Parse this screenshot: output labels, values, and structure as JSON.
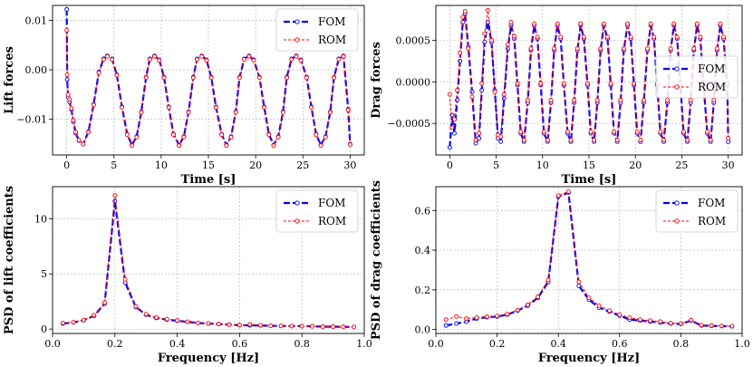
{
  "colors": {
    "fom": "#0000ff",
    "rom": "#ff0000"
  },
  "chart_data": [
    {
      "id": "lift-time",
      "type": "line",
      "xlabel": "Time [s]",
      "ylabel": "Lift forces",
      "xlim": [
        -1.5,
        31.5
      ],
      "ylim": [
        -0.0172,
        0.013
      ],
      "xticks": [
        0,
        5,
        10,
        15,
        20,
        25,
        30
      ],
      "xtick_labels": [
        "0",
        "5",
        "10",
        "15",
        "20",
        "25",
        "30"
      ],
      "yticks": [
        -0.01,
        0.0,
        0.01
      ],
      "ytick_labels": [
        "−0.01",
        "0.00",
        "0.01"
      ],
      "legend": [
        "FOM",
        "ROM"
      ],
      "grid": true,
      "series": [
        {
          "name": "FOM",
          "x": [
            0,
            0.05,
            0.15,
            0.3,
            0.5,
            0.7,
            0.95,
            1.3,
            1.75,
            2.3,
            2.85,
            3.4,
            3.9,
            4.3,
            4.8,
            5.3,
            5.85,
            6.4,
            6.9,
            7.4,
            7.9,
            8.4,
            8.8,
            9.3,
            9.8,
            10.3,
            10.8,
            11.3,
            11.9,
            12.4,
            12.9,
            13.4,
            13.8,
            14.3,
            14.8,
            15.3,
            15.8,
            16.4,
            16.9,
            17.4,
            17.9,
            18.3,
            18.8,
            19.3,
            19.8,
            20.4,
            20.9,
            21.4,
            21.9,
            22.4,
            22.9,
            23.3,
            23.8,
            24.3,
            24.8,
            25.4,
            25.9,
            26.4,
            26.9,
            27.4,
            27.9,
            28.3,
            28.8,
            29.3,
            29.8,
            30.0
          ],
          "y": [
            0.0122,
            -0.002,
            -0.0055,
            -0.0065,
            -0.008,
            -0.0105,
            -0.0128,
            -0.0143,
            -0.015,
            -0.0125,
            -0.007,
            -0.0005,
            0.0022,
            0.0028,
            0.0022,
            -0.001,
            -0.0075,
            -0.013,
            -0.0152,
            -0.0135,
            -0.0085,
            -0.0015,
            0.0022,
            0.0028,
            0.002,
            -0.0015,
            -0.0075,
            -0.013,
            -0.0152,
            -0.0135,
            -0.0085,
            -0.0015,
            0.0022,
            0.0028,
            0.002,
            -0.0015,
            -0.0075,
            -0.013,
            -0.0152,
            -0.0135,
            -0.0085,
            -0.0015,
            0.0022,
            0.0028,
            0.002,
            -0.0015,
            -0.0075,
            -0.013,
            -0.0152,
            -0.0135,
            -0.0085,
            -0.0015,
            0.0022,
            0.0028,
            0.002,
            -0.0015,
            -0.0075,
            -0.013,
            -0.0152,
            -0.0135,
            -0.0085,
            -0.0015,
            0.0022,
            0.0028,
            -0.008,
            -0.015
          ]
        },
        {
          "name": "ROM",
          "x": [
            0,
            0.05,
            0.15,
            0.3,
            0.5,
            0.7,
            0.95,
            1.3,
            1.75,
            2.3,
            2.85,
            3.4,
            3.9,
            4.3,
            4.8,
            5.3,
            5.85,
            6.4,
            6.9,
            7.4,
            7.9,
            8.4,
            8.8,
            9.3,
            9.8,
            10.3,
            10.8,
            11.3,
            11.9,
            12.4,
            12.9,
            13.4,
            13.8,
            14.3,
            14.8,
            15.3,
            15.8,
            16.4,
            16.9,
            17.4,
            17.9,
            18.3,
            18.8,
            19.3,
            19.8,
            20.4,
            20.9,
            21.4,
            21.9,
            22.4,
            22.9,
            23.3,
            23.8,
            24.3,
            24.8,
            25.4,
            25.9,
            26.4,
            26.9,
            27.4,
            27.9,
            28.3,
            28.8,
            29.3,
            29.8,
            30.0
          ],
          "y": [
            0.008,
            -0.001,
            -0.005,
            -0.006,
            -0.0078,
            -0.0102,
            -0.0126,
            -0.0142,
            -0.015,
            -0.0126,
            -0.0071,
            -0.0006,
            0.0021,
            0.0027,
            0.0021,
            -0.0011,
            -0.0076,
            -0.0131,
            -0.0153,
            -0.0136,
            -0.0086,
            -0.0016,
            0.0021,
            0.0027,
            0.0019,
            -0.0016,
            -0.0076,
            -0.0131,
            -0.0153,
            -0.0136,
            -0.0086,
            -0.0016,
            0.0021,
            0.0027,
            0.0019,
            -0.0016,
            -0.0076,
            -0.0131,
            -0.0153,
            -0.0136,
            -0.0086,
            -0.0016,
            0.0021,
            0.0027,
            0.0019,
            -0.0016,
            -0.0076,
            -0.0131,
            -0.0153,
            -0.0136,
            -0.0086,
            -0.0016,
            0.0021,
            0.0027,
            0.0019,
            -0.0016,
            -0.0076,
            -0.0131,
            -0.0153,
            -0.0136,
            -0.0086,
            -0.0016,
            0.0021,
            0.0027,
            -0.0081,
            -0.0151
          ]
        }
      ]
    },
    {
      "id": "drag-time",
      "type": "line",
      "xlabel": "Time [s]",
      "ylabel": "Drag forces",
      "xlim": [
        -1.5,
        31.5
      ],
      "ylim": [
        -0.00088,
        0.00092
      ],
      "xticks": [
        0,
        5,
        10,
        15,
        20,
        25,
        30
      ],
      "xtick_labels": [
        "0",
        "5",
        "10",
        "15",
        "20",
        "25",
        "30"
      ],
      "yticks": [
        -0.0005,
        0.0,
        0.0005
      ],
      "ytick_labels": [
        "−0.0005",
        "0.0000",
        "0.0005"
      ],
      "legend": [
        "FOM",
        "ROM"
      ],
      "grid": true,
      "series": [
        {
          "name": "FOM",
          "x": [
            0,
            0.25,
            0.5,
            0.8,
            1.1,
            1.4,
            1.65,
            2.0,
            2.4,
            2.8,
            3.15,
            3.45,
            3.75,
            4.1,
            4.5,
            4.85,
            5.2,
            5.5,
            5.85,
            6.25,
            6.6,
            6.95,
            7.3,
            7.65,
            8.0,
            8.4,
            8.75,
            9.1,
            9.45,
            9.8,
            10.15,
            10.55,
            10.9,
            11.25,
            11.6,
            11.95,
            12.3,
            12.7,
            13.05,
            13.4,
            13.75,
            14.1,
            14.45,
            14.85,
            15.2,
            15.55,
            15.9,
            16.25,
            16.6,
            17.0,
            17.35,
            17.7,
            18.05,
            18.4,
            18.75,
            19.15,
            19.5,
            19.85,
            20.2,
            20.55,
            20.9,
            21.3,
            21.65,
            22.0,
            22.35,
            22.7,
            23.05,
            23.45,
            23.8,
            24.15,
            24.5,
            24.85,
            25.2,
            25.6,
            25.95,
            26.3,
            26.65,
            27.0,
            27.35,
            27.75,
            28.1,
            28.45,
            28.8,
            29.15,
            29.5,
            29.9,
            30.0
          ],
          "y": [
            -0.00079,
            -0.0004,
            -0.00062,
            -0.00022,
            0.00025,
            0.00072,
            0.00082,
            0.00042,
            -0.00012,
            -0.00074,
            -0.00068,
            -0.0001,
            0.00048,
            0.00072,
            0.00048,
            -0.0001,
            -0.00068,
            -0.00072,
            -0.0002,
            0.0004,
            0.00068,
            0.00052,
            -4e-05,
            -0.00062,
            -0.00072,
            -0.00025,
            0.00038,
            0.00068,
            0.00052,
            -4e-05,
            -0.00062,
            -0.00072,
            -0.00025,
            0.00038,
            0.00068,
            0.00052,
            -4e-05,
            -0.00062,
            -0.00072,
            -0.00025,
            0.00038,
            0.00068,
            0.00052,
            -4e-05,
            -0.00062,
            -0.00072,
            -0.00025,
            0.00038,
            0.00068,
            0.00052,
            -4e-05,
            -0.00062,
            -0.00072,
            -0.00025,
            0.00038,
            0.00068,
            0.00052,
            -4e-05,
            -0.00062,
            -0.00072,
            -0.00025,
            0.00038,
            0.00068,
            0.00052,
            -4e-05,
            -0.00062,
            -0.00072,
            -0.00025,
            0.00038,
            0.00068,
            0.00052,
            -4e-05,
            -0.00062,
            -0.00072,
            -0.00025,
            0.00038,
            0.00068,
            0.00052,
            -4e-05,
            -0.00062,
            -0.00072,
            -0.00025,
            0.00038,
            0.00068,
            0.00052,
            -4e-05,
            -0.00072
          ]
        },
        {
          "name": "ROM",
          "x": [
            0,
            0.25,
            0.5,
            0.8,
            1.1,
            1.4,
            1.65,
            2.0,
            2.4,
            2.8,
            3.15,
            3.45,
            3.75,
            4.1,
            4.5,
            4.85,
            5.2,
            5.5,
            5.85,
            6.25,
            6.6,
            6.95,
            7.3,
            7.65,
            8.0,
            8.4,
            8.75,
            9.1,
            9.45,
            9.8,
            10.15,
            10.55,
            10.9,
            11.25,
            11.6,
            11.95,
            12.3,
            12.7,
            13.05,
            13.4,
            13.75,
            14.1,
            14.45,
            14.85,
            15.2,
            15.55,
            15.9,
            16.25,
            16.6,
            17.0,
            17.35,
            17.7,
            18.05,
            18.4,
            18.75,
            19.15,
            19.5,
            19.85,
            20.2,
            20.55,
            20.9,
            21.3,
            21.65,
            22.0,
            22.35,
            22.7,
            23.05,
            23.45,
            23.8,
            24.15,
            24.5,
            24.85,
            25.2,
            25.6,
            25.95,
            26.3,
            26.65,
            27.0,
            27.35,
            27.75,
            28.1,
            28.45,
            28.8,
            29.15,
            29.5,
            29.9,
            30.0
          ],
          "y": [
            -0.00015,
            -0.00055,
            -0.00045,
            -0.0001,
            0.00035,
            0.00078,
            0.00085,
            0.0004,
            -0.00018,
            -0.0007,
            -0.00062,
            -2e-05,
            0.00058,
            0.00086,
            0.0005,
            -0.00012,
            -0.00064,
            -0.00066,
            -0.00015,
            0.00045,
            0.00072,
            0.00055,
            -2e-05,
            -0.0006,
            -0.0007,
            -0.00022,
            0.0004,
            0.0007,
            0.00054,
            -2e-05,
            -0.0006,
            -0.0007,
            -0.00022,
            0.0004,
            0.0007,
            0.00054,
            -2e-05,
            -0.0006,
            -0.0007,
            -0.00022,
            0.0004,
            0.0007,
            0.00054,
            -2e-05,
            -0.0006,
            -0.0007,
            -0.00022,
            0.0004,
            0.0007,
            0.00054,
            -2e-05,
            -0.0006,
            -0.0007,
            -0.00022,
            0.0004,
            0.0007,
            0.00054,
            -2e-05,
            -0.0006,
            -0.0007,
            -0.00022,
            0.0004,
            0.0007,
            0.00054,
            -2e-05,
            -0.0006,
            -0.0007,
            -0.00022,
            0.0004,
            0.0007,
            0.00054,
            -2e-05,
            -0.0006,
            -0.0007,
            -0.00022,
            0.0004,
            0.0007,
            0.00054,
            -2e-05,
            -0.0006,
            -0.0007,
            -0.00022,
            0.0004,
            0.0007,
            0.00054,
            -2e-05,
            -0.00068
          ]
        }
      ]
    },
    {
      "id": "lift-psd",
      "type": "line",
      "xlabel": "Frequency [Hz]",
      "ylabel": "PSD of lift coefficients",
      "xlim": [
        0.0,
        1.0
      ],
      "ylim": [
        -0.4,
        12.9
      ],
      "xticks": [
        0.0,
        0.2,
        0.4,
        0.6,
        0.8,
        1.0
      ],
      "xtick_labels": [
        "0.0",
        "0.2",
        "0.4",
        "0.6",
        "0.8",
        "1.0"
      ],
      "yticks": [
        0,
        5,
        10
      ],
      "ytick_labels": [
        "0",
        "5",
        "10"
      ],
      "legend": [
        "FOM",
        "ROM"
      ],
      "grid": true,
      "series": [
        {
          "name": "FOM",
          "x": [
            0.033,
            0.067,
            0.1,
            0.133,
            0.167,
            0.2,
            0.233,
            0.267,
            0.3,
            0.333,
            0.367,
            0.4,
            0.433,
            0.467,
            0.5,
            0.533,
            0.567,
            0.6,
            0.633,
            0.667,
            0.7,
            0.733,
            0.767,
            0.8,
            0.833,
            0.867,
            0.9,
            0.933,
            0.967
          ],
          "y": [
            0.5,
            0.6,
            0.8,
            1.2,
            2.3,
            11.6,
            4.2,
            2.0,
            1.3,
            1.0,
            0.85,
            0.75,
            0.65,
            0.55,
            0.5,
            0.45,
            0.4,
            0.35,
            0.33,
            0.32,
            0.3,
            0.28,
            0.27,
            0.26,
            0.24,
            0.22,
            0.21,
            0.2,
            0.19
          ]
        },
        {
          "name": "ROM",
          "x": [
            0.033,
            0.067,
            0.1,
            0.133,
            0.167,
            0.2,
            0.233,
            0.267,
            0.3,
            0.333,
            0.367,
            0.4,
            0.433,
            0.467,
            0.5,
            0.533,
            0.567,
            0.6,
            0.633,
            0.667,
            0.7,
            0.733,
            0.767,
            0.8,
            0.833,
            0.867,
            0.9,
            0.933,
            0.967
          ],
          "y": [
            0.55,
            0.62,
            0.82,
            1.25,
            2.4,
            12.1,
            4.5,
            2.05,
            1.35,
            1.05,
            0.9,
            0.78,
            0.66,
            0.56,
            0.52,
            0.46,
            0.4,
            0.36,
            0.42,
            0.34,
            0.3,
            0.28,
            0.27,
            0.26,
            0.24,
            0.22,
            0.21,
            0.2,
            0.19
          ]
        }
      ]
    },
    {
      "id": "drag-psd",
      "type": "line",
      "xlabel": "Frequency [Hz]",
      "ylabel": "PSD of drag coefficients",
      "xlim": [
        0.0,
        1.0
      ],
      "ylim": [
        -0.02,
        0.72
      ],
      "xticks": [
        0.0,
        0.2,
        0.4,
        0.6,
        0.8,
        1.0
      ],
      "xtick_labels": [
        "0.0",
        "0.2",
        "0.4",
        "0.6",
        "0.8",
        "1.0"
      ],
      "yticks": [
        0.0,
        0.2,
        0.4,
        0.6
      ],
      "ytick_labels": [
        "0.0",
        "0.2",
        "0.4",
        "0.6"
      ],
      "legend": [
        "FOM",
        "ROM"
      ],
      "grid": true,
      "series": [
        {
          "name": "FOM",
          "x": [
            0.033,
            0.067,
            0.1,
            0.133,
            0.167,
            0.2,
            0.233,
            0.267,
            0.3,
            0.333,
            0.367,
            0.4,
            0.433,
            0.467,
            0.5,
            0.533,
            0.567,
            0.6,
            0.633,
            0.667,
            0.7,
            0.733,
            0.767,
            0.8,
            0.833,
            0.867,
            0.9,
            0.933,
            0.967
          ],
          "y": [
            0.02,
            0.03,
            0.04,
            0.055,
            0.062,
            0.065,
            0.075,
            0.095,
            0.12,
            0.16,
            0.24,
            0.67,
            0.69,
            0.22,
            0.15,
            0.11,
            0.09,
            0.07,
            0.05,
            0.045,
            0.04,
            0.035,
            0.03,
            0.028,
            0.045,
            0.02,
            0.018,
            0.017,
            0.016
          ]
        },
        {
          "name": "ROM",
          "x": [
            0.033,
            0.067,
            0.1,
            0.133,
            0.167,
            0.2,
            0.233,
            0.267,
            0.3,
            0.333,
            0.367,
            0.4,
            0.433,
            0.467,
            0.5,
            0.533,
            0.567,
            0.6,
            0.633,
            0.667,
            0.7,
            0.733,
            0.767,
            0.8,
            0.833,
            0.867,
            0.9,
            0.933,
            0.967
          ],
          "y": [
            0.05,
            0.065,
            0.055,
            0.06,
            0.065,
            0.068,
            0.078,
            0.098,
            0.125,
            0.165,
            0.25,
            0.675,
            0.695,
            0.24,
            0.16,
            0.12,
            0.095,
            0.075,
            0.06,
            0.05,
            0.045,
            0.04,
            0.032,
            0.03,
            0.048,
            0.022,
            0.02,
            0.018,
            0.017
          ]
        }
      ]
    }
  ]
}
